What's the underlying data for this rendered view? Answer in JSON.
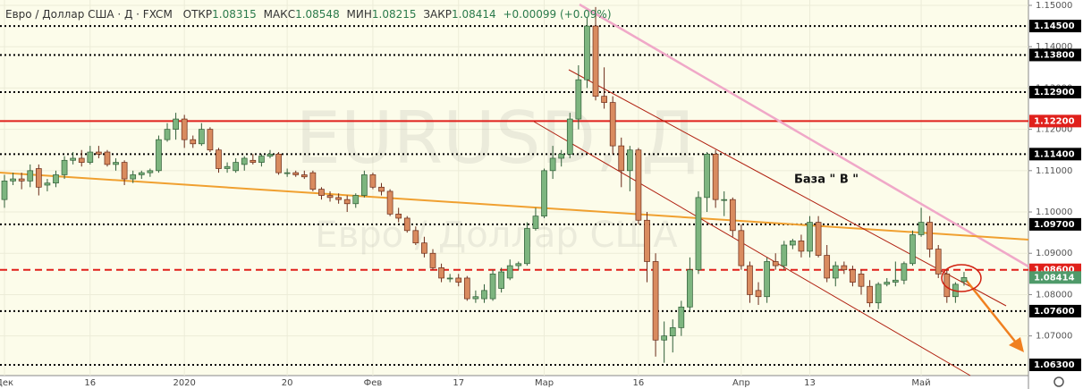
{
  "header": {
    "symbol": "Евро / Доллар США · Д · FXCM",
    "open_label": "ОТКР",
    "open": "1.08315",
    "high_label": "МАКС",
    "high": "1.08548",
    "low_label": "МИН",
    "low": "1.08215",
    "close_label": "ЗАКР",
    "close": "1.08414",
    "change": "+0.00099 (+0.09%)"
  },
  "chart_data": {
    "type": "candlestick",
    "watermark": "EURUSD, Д",
    "watermark_subtitle": "Евро / Доллар США",
    "annotation": "База \" В \"",
    "categories": [
      "Дек",
      null,
      null,
      null,
      null,
      null,
      null,
      null,
      null,
      null,
      "16",
      null,
      null,
      null,
      null,
      null,
      null,
      null,
      null,
      null,
      null,
      "2020",
      null,
      null,
      null,
      null,
      null,
      null,
      null,
      null,
      null,
      null,
      null,
      "20",
      null,
      null,
      null,
      null,
      null,
      null,
      null,
      null,
      null,
      "Фев",
      null,
      null,
      null,
      null,
      null,
      null,
      null,
      null,
      null,
      "17",
      null,
      null,
      null,
      null,
      null,
      null,
      null,
      null,
      null,
      "Мар",
      null,
      null,
      null,
      null,
      null,
      null,
      null,
      null,
      null,
      null,
      "16",
      null,
      null,
      null,
      null,
      null,
      null,
      null,
      null,
      null,
      null,
      null,
      "Апр",
      null,
      null,
      null,
      null,
      null,
      null,
      null,
      "13",
      null,
      null,
      null,
      null,
      null,
      null,
      null,
      null,
      null,
      null,
      null,
      null,
      "Май",
      null,
      null,
      null,
      null,
      null
    ],
    "open": [
      1.103,
      1.1075,
      1.108,
      1.1075,
      1.1105,
      1.1065,
      1.107,
      1.109,
      1.1125,
      1.113,
      1.112,
      1.1145,
      1.1145,
      1.1115,
      1.112,
      1.108,
      1.109,
      1.1095,
      1.11,
      1.1175,
      1.12,
      1.1225,
      1.1175,
      1.1165,
      1.12,
      1.115,
      1.1105,
      1.11,
      1.1115,
      1.1125,
      1.112,
      1.1135,
      1.114,
      1.1095,
      1.1095,
      1.109,
      1.1095,
      1.1055,
      1.104,
      1.1035,
      1.103,
      1.102,
      1.104,
      1.109,
      1.106,
      1.105,
      1.0995,
      1.0985,
      1.0955,
      1.0925,
      1.09,
      1.0865,
      1.084,
      1.084,
      1.084,
      1.079,
      1.079,
      1.079,
      1.0815,
      1.084,
      1.087,
      1.0875,
      1.096,
      1.099,
      1.11,
      1.113,
      1.114,
      1.1225,
      1.132,
      1.145,
      1.128,
      1.1265,
      1.116,
      1.11,
      1.115,
      1.098,
      1.088,
      1.069,
      1.07,
      1.072,
      1.077,
      1.086,
      1.1035,
      1.114,
      1.103,
      1.103,
      1.0955,
      1.087,
      1.081,
      1.0795,
      1.088,
      1.087,
      1.092,
      1.093,
      1.0905,
      1.0975,
      1.0895,
      1.084,
      1.087,
      1.086,
      1.085,
      1.082,
      1.078,
      1.0825,
      1.083,
      1.0835,
      1.0875,
      1.0945,
      1.0975,
      1.091,
      1.085,
      1.0795,
      1.08315
    ],
    "high": [
      1.109,
      1.1095,
      1.1095,
      1.1115,
      1.1115,
      1.108,
      1.11,
      1.1135,
      1.1145,
      1.115,
      1.116,
      1.116,
      1.115,
      1.113,
      1.1125,
      1.11,
      1.11,
      1.1105,
      1.1185,
      1.1215,
      1.124,
      1.1235,
      1.1185,
      1.1215,
      1.1205,
      1.1155,
      1.112,
      1.113,
      1.1135,
      1.114,
      1.114,
      1.115,
      1.1145,
      1.1105,
      1.11,
      1.11,
      1.11,
      1.106,
      1.105,
      1.1045,
      1.104,
      1.1045,
      1.11,
      1.1095,
      1.107,
      1.1055,
      1.101,
      1.099,
      1.0965,
      1.094,
      1.091,
      1.0875,
      1.085,
      1.085,
      1.0845,
      1.081,
      1.0825,
      1.086,
      1.0865,
      1.0885,
      1.088,
      1.0975,
      1.101,
      1.1105,
      1.116,
      1.115,
      1.124,
      1.1355,
      1.147,
      1.1496,
      1.135,
      1.128,
      1.118,
      1.116,
      1.1155,
      1.1,
      1.09,
      1.0735,
      1.074,
      1.0785,
      1.089,
      1.105,
      1.1145,
      1.115,
      1.105,
      1.1035,
      1.097,
      1.088,
      1.083,
      1.089,
      1.09,
      1.093,
      1.0935,
      1.0945,
      1.099,
      1.099,
      1.092,
      1.088,
      1.088,
      1.087,
      1.086,
      1.0835,
      1.083,
      1.084,
      1.088,
      1.088,
      1.0955,
      1.101,
      1.099,
      1.092,
      1.086,
      1.083,
      1.08548
    ],
    "low": [
      1.101,
      1.1065,
      1.1055,
      1.106,
      1.104,
      1.105,
      1.106,
      1.108,
      1.1115,
      1.111,
      1.1115,
      1.113,
      1.111,
      1.11,
      1.1065,
      1.107,
      1.108,
      1.1085,
      1.1095,
      1.117,
      1.1175,
      1.1155,
      1.1155,
      1.116,
      1.1145,
      1.1095,
      1.1095,
      1.1095,
      1.11,
      1.1115,
      1.111,
      1.113,
      1.109,
      1.1085,
      1.1085,
      1.108,
      1.105,
      1.103,
      1.1025,
      1.102,
      1.1,
      1.101,
      1.1035,
      1.1055,
      1.104,
      1.099,
      1.0975,
      1.095,
      1.092,
      1.089,
      1.086,
      1.083,
      1.083,
      1.082,
      1.0785,
      1.078,
      1.078,
      1.0785,
      1.0805,
      1.0835,
      1.086,
      1.087,
      1.0955,
      1.0985,
      1.108,
      1.111,
      1.113,
      1.12,
      1.13,
      1.127,
      1.125,
      1.114,
      1.106,
      1.105,
      1.097,
      1.083,
      1.065,
      1.0635,
      1.066,
      1.07,
      1.076,
      1.085,
      1.1,
      1.101,
      1.099,
      1.094,
      1.086,
      1.078,
      1.0775,
      1.078,
      1.086,
      1.086,
      1.091,
      1.089,
      1.089,
      1.089,
      1.083,
      1.082,
      1.085,
      1.082,
      1.08,
      1.077,
      1.0765,
      1.082,
      1.082,
      1.0825,
      1.087,
      1.094,
      1.089,
      1.084,
      1.078,
      1.078,
      1.08215
    ],
    "close": [
      1.1075,
      1.108,
      1.1075,
      1.11,
      1.106,
      1.107,
      1.109,
      1.1125,
      1.113,
      1.112,
      1.1145,
      1.114,
      1.1115,
      1.112,
      1.108,
      1.109,
      1.1095,
      1.11,
      1.1175,
      1.12,
      1.1225,
      1.1175,
      1.1165,
      1.12,
      1.115,
      1.1105,
      1.111,
      1.112,
      1.113,
      1.112,
      1.1135,
      1.114,
      1.1095,
      1.1095,
      1.109,
      1.1085,
      1.1055,
      1.104,
      1.1035,
      1.103,
      1.102,
      1.104,
      1.109,
      1.106,
      1.105,
      1.0995,
      1.0985,
      1.0955,
      1.0925,
      1.09,
      1.0865,
      1.084,
      1.084,
      1.083,
      1.079,
      1.0795,
      1.081,
      1.085,
      1.0855,
      1.087,
      1.0875,
      1.096,
      1.099,
      1.11,
      1.113,
      1.114,
      1.1225,
      1.132,
      1.145,
      1.128,
      1.1265,
      1.116,
      1.11,
      1.115,
      1.098,
      1.088,
      1.069,
      1.07,
      1.072,
      1.077,
      1.086,
      1.1035,
      1.114,
      1.103,
      1.103,
      1.0955,
      1.087,
      1.08,
      1.0795,
      1.088,
      1.087,
      1.092,
      1.093,
      1.0905,
      1.0975,
      1.0895,
      1.084,
      1.087,
      1.086,
      1.083,
      1.082,
      1.078,
      1.0825,
      1.083,
      1.0835,
      1.0875,
      1.0945,
      1.0975,
      1.091,
      1.085,
      1.0795,
      1.0825,
      1.08414
    ],
    "up_color": "#7db57f",
    "down_color": "#d98b5f",
    "ylim": [
      1.0604,
      1.1513
    ],
    "yticks": [
      {
        "value": 1.07,
        "label": "1.07000"
      },
      {
        "value": 1.08,
        "label": "1.08000"
      },
      {
        "value": 1.09,
        "label": "1.09000"
      },
      {
        "value": 1.1,
        "label": "1.10000"
      },
      {
        "value": 1.11,
        "label": "1.11000"
      },
      {
        "value": 1.12,
        "label": "1.12000"
      },
      {
        "value": 1.13,
        "label": "1.13000"
      },
      {
        "value": 1.14,
        "label": "1.14000"
      },
      {
        "value": 1.15,
        "label": "1.15000"
      }
    ],
    "grid": true,
    "levels": [
      {
        "value": 1.145,
        "label": "1.14500",
        "style": "dotted",
        "color": "#000000"
      },
      {
        "value": 1.138,
        "label": "1.13800",
        "style": "dotted",
        "color": "#000000"
      },
      {
        "value": 1.129,
        "label": "1.12900",
        "style": "dotted",
        "color": "#000000"
      },
      {
        "value": 1.122,
        "label": "1.12200",
        "style": "solid",
        "color": "#e0201b"
      },
      {
        "value": 1.114,
        "label": "1.11400",
        "style": "dotted",
        "color": "#000000"
      },
      {
        "value": 1.097,
        "label": "1.09700",
        "style": "dotted",
        "color": "#000000"
      },
      {
        "value": 1.086,
        "label": "1.08600",
        "style": "dashed",
        "color": "#e0201b"
      },
      {
        "value": 1.076,
        "label": "1.07600",
        "style": "dotted",
        "color": "#000000"
      },
      {
        "value": 1.063,
        "label": "1.06300",
        "style": "dotted",
        "color": "#000000"
      }
    ],
    "last_price": {
      "value": 1.08414,
      "label": "1.08414",
      "color": "#4f9a6a"
    }
  }
}
